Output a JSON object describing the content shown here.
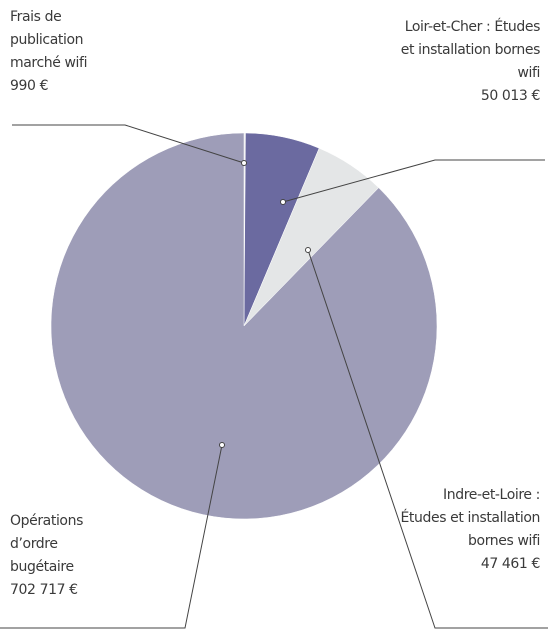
{
  "chart_data": {
    "type": "pie",
    "categories": [
      "Frais de publication marché wifi",
      "Loir-et-Cher : Études et installation bornes wifi",
      "Indre-et-Loire : Études et installation bornes wifi",
      "Opérations d’ordre bugétaire"
    ],
    "values": [
      990,
      50013,
      47461,
      702717
    ],
    "value_labels": [
      "990 €",
      "50 013 €",
      "47 461 €",
      "702 717 €"
    ],
    "colors": [
      "#efefef",
      "#6b6aa0",
      "#e4e6e7",
      "#9e9db8"
    ]
  }
}
